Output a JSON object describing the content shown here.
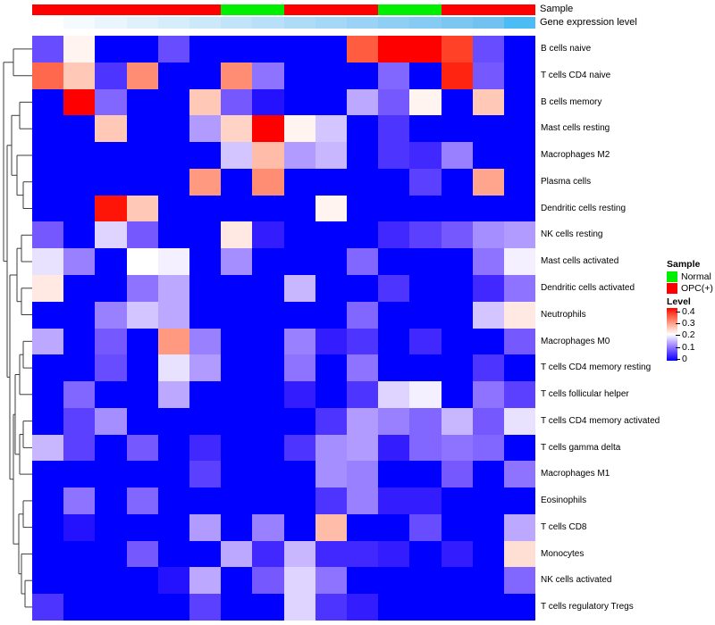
{
  "header": {
    "sample_annotation_label": "Sample",
    "gene_annotation_label": "Gene expression level"
  },
  "legend": {
    "sample_title": "Sample",
    "sample_items": [
      {
        "label": "Normal",
        "color": "#00ee00"
      },
      {
        "label": "OPC(+)",
        "color": "#ff0000"
      }
    ],
    "level_title": "Level",
    "level_ticks": [
      "0.4",
      "0.3",
      "0.2",
      "0.1",
      "0"
    ]
  },
  "colors": {
    "normal_green": "#00ee00",
    "opc_red": "#ff0000",
    "heat_low": "#0000ff",
    "heat_mid": "#ffffff",
    "heat_high": "#ff0000",
    "dendrogram_stroke": "#3c3c3c"
  },
  "chart_data": {
    "type": "heatmap",
    "title": "",
    "value_name": "Level",
    "value_range": [
      0,
      0.4
    ],
    "colormap": {
      "low": "#0000ff",
      "mid": "#ffffff",
      "high": "#ff0000",
      "midpoint": 0.2
    },
    "n_columns": 16,
    "column_sample_groups": [
      "OPC(+)",
      "OPC(+)",
      "OPC(+)",
      "OPC(+)",
      "OPC(+)",
      "OPC(+)",
      "Normal",
      "Normal",
      "OPC(+)",
      "OPC(+)",
      "OPC(+)",
      "Normal",
      "Normal",
      "OPC(+)",
      "OPC(+)",
      "OPC(+)"
    ],
    "gene_expression_colors": [
      "#ffffff",
      "#f4fafe",
      "#eaf5fd",
      "#e0f1fc",
      "#d6edfb",
      "#cce9fa",
      "#c2e4f9",
      "#b8e0f8",
      "#aedcf7",
      "#a4d8f6",
      "#9ad3f5",
      "#90cff4",
      "#86cbf3",
      "#7cc6f2",
      "#72c2f1",
      "#4bbdf4"
    ],
    "rows": [
      "B cells naive",
      "T cells CD4 naive",
      "B cells memory",
      "Mast cells resting",
      "Macrophages M2",
      "Plasma cells",
      "Dendritic cells resting",
      "NK cells resting",
      "Mast cells activated",
      "Dendritic cells activated",
      "Neutrophils",
      "Macrophages M0",
      "T cells CD4 memory resting",
      "T cells follicular helper",
      "T cells CD4 memory activated",
      "T cells gamma delta",
      "Macrophages M1",
      "Eosinophils",
      "T cells CD8",
      "Monocytes",
      "NK cells activated",
      "T cells regulatory  Tregs"
    ],
    "values": [
      [
        0.07,
        0.21,
        0,
        0,
        0.07,
        0,
        0,
        0,
        0,
        0,
        0.34,
        0.4,
        0.4,
        0.36,
        0.07,
        0
      ],
      [
        0.33,
        0.25,
        0.05,
        0.3,
        0,
        0,
        0.3,
        0.1,
        0,
        0,
        0,
        0.09,
        0,
        0.38,
        0.08,
        0
      ],
      [
        0,
        0.4,
        0.09,
        0,
        0,
        0.25,
        0.08,
        0.02,
        0,
        0,
        0.14,
        0.08,
        0.21,
        0,
        0.25,
        0
      ],
      [
        0,
        0,
        0.25,
        0,
        0,
        0.13,
        0.24,
        0.4,
        0.21,
        0.16,
        0,
        0.05,
        0,
        0,
        0,
        0
      ],
      [
        0,
        0,
        0,
        0,
        0,
        0,
        0.16,
        0.26,
        0.13,
        0.15,
        0,
        0.05,
        0.04,
        0.11,
        0,
        0
      ],
      [
        0,
        0,
        0,
        0,
        0,
        0.29,
        0,
        0.3,
        0,
        0,
        0,
        0,
        0.06,
        0,
        0.28,
        0
      ],
      [
        0,
        0,
        0.39,
        0.25,
        0,
        0,
        0,
        0,
        0,
        0.21,
        0,
        0,
        0,
        0,
        0,
        0
      ],
      [
        0.08,
        0,
        0.17,
        0.08,
        0,
        0,
        0.22,
        0.03,
        0,
        0,
        0,
        0.04,
        0.06,
        0.08,
        0.12,
        0.13
      ],
      [
        0.18,
        0.11,
        0,
        0.2,
        0.19,
        0,
        0.12,
        0,
        0,
        0,
        0.09,
        0,
        0,
        0,
        0.1,
        0.19
      ],
      [
        0.22,
        0,
        0,
        0.1,
        0.14,
        0,
        0,
        0,
        0.15,
        0,
        0,
        0.05,
        0,
        0,
        0.04,
        0.1
      ],
      [
        0,
        0,
        0.11,
        0.16,
        0.14,
        0,
        0,
        0,
        0,
        0,
        0.09,
        0,
        0,
        0,
        0.16,
        0.22
      ],
      [
        0.14,
        0,
        0.08,
        0,
        0.29,
        0.11,
        0,
        0,
        0.11,
        0.03,
        0.05,
        0,
        0.04,
        0,
        0,
        0.08
      ],
      [
        0,
        0,
        0.07,
        0,
        0.18,
        0.13,
        0,
        0,
        0.1,
        0,
        0.1,
        0,
        0,
        0,
        0.05,
        0
      ],
      [
        0,
        0.09,
        0,
        0,
        0.14,
        0,
        0,
        0,
        0.03,
        0,
        0.05,
        0.17,
        0.19,
        0,
        0.1,
        0.06
      ],
      [
        0,
        0.06,
        0.12,
        0,
        0,
        0,
        0,
        0,
        0,
        0.05,
        0.13,
        0.11,
        0.09,
        0.15,
        0.08,
        0.18
      ],
      [
        0.15,
        0.06,
        0,
        0.08,
        0,
        0.04,
        0,
        0,
        0.05,
        0.12,
        0.13,
        0.03,
        0.09,
        0.1,
        0.09,
        0
      ],
      [
        0,
        0,
        0,
        0,
        0,
        0.06,
        0,
        0,
        0,
        0.12,
        0.11,
        0,
        0,
        0.08,
        0,
        0.1
      ],
      [
        0,
        0.1,
        0,
        0.09,
        0,
        0,
        0,
        0,
        0,
        0.05,
        0.11,
        0.03,
        0.03,
        0,
        0,
        0
      ],
      [
        0,
        0.02,
        0,
        0,
        0,
        0.13,
        0,
        0.11,
        0,
        0.26,
        0,
        0,
        0.07,
        0,
        0,
        0.14
      ],
      [
        0,
        0,
        0,
        0.08,
        0,
        0,
        0.14,
        0.04,
        0.15,
        0.04,
        0.04,
        0.03,
        0,
        0.03,
        0,
        0.23
      ],
      [
        0,
        0,
        0,
        0,
        0.02,
        0.14,
        0,
        0.08,
        0.17,
        0.1,
        0,
        0,
        0,
        0,
        0,
        0.09
      ],
      [
        0.05,
        0,
        0,
        0,
        0,
        0.06,
        0,
        0,
        0.17,
        0.05,
        0.03,
        0,
        0,
        0,
        0,
        0
      ]
    ],
    "row_dendrogram_segments": [
      [
        15,
        54.9,
        15,
        84.7
      ],
      [
        15,
        54.9,
        36,
        54.9
      ],
      [
        15,
        84.7,
        36,
        84.7
      ],
      [
        22,
        114.4,
        22,
        144.2
      ],
      [
        22,
        114.4,
        36,
        114.4
      ],
      [
        22,
        144.2,
        36,
        144.2
      ],
      [
        26,
        203.7,
        26,
        233.5
      ],
      [
        26,
        203.7,
        36,
        203.7
      ],
      [
        26,
        233.5,
        36,
        233.5
      ],
      [
        19,
        174,
        19,
        218.6
      ],
      [
        19,
        174,
        36,
        174
      ],
      [
        19,
        218.6,
        26,
        218.6
      ],
      [
        13,
        129.3,
        13,
        196.3
      ],
      [
        13,
        129.3,
        22,
        129.3
      ],
      [
        13,
        196.3,
        19,
        196.3
      ],
      [
        24,
        263.3,
        24,
        293
      ],
      [
        24,
        263.3,
        36,
        263.3
      ],
      [
        24,
        293,
        36,
        293
      ],
      [
        24,
        322.8,
        24,
        352.5
      ],
      [
        24,
        322.8,
        36,
        322.8
      ],
      [
        24,
        352.5,
        36,
        352.5
      ],
      [
        19,
        278.2,
        19,
        337.7
      ],
      [
        19,
        278.2,
        24,
        278.2
      ],
      [
        19,
        337.7,
        24,
        337.7
      ],
      [
        26,
        382.3,
        26,
        412.1
      ],
      [
        26,
        382.3,
        36,
        382.3
      ],
      [
        26,
        412.1,
        36,
        412.1
      ],
      [
        22,
        397.2,
        22,
        441.8
      ],
      [
        22,
        397.2,
        26,
        397.2
      ],
      [
        22,
        441.8,
        36,
        441.8
      ],
      [
        26,
        471.6,
        26,
        501.4
      ],
      [
        26,
        471.6,
        36,
        471.6
      ],
      [
        26,
        501.4,
        36,
        501.4
      ],
      [
        22,
        486.5,
        22,
        531.1
      ],
      [
        22,
        486.5,
        26,
        486.5
      ],
      [
        22,
        531.1,
        36,
        531.1
      ],
      [
        17,
        419.5,
        17,
        508.8
      ],
      [
        17,
        419.5,
        22,
        419.5
      ],
      [
        17,
        508.8,
        22,
        508.8
      ],
      [
        26,
        560.9,
        26,
        590.6
      ],
      [
        26,
        560.9,
        36,
        560.9
      ],
      [
        26,
        590.6,
        36,
        590.6
      ],
      [
        28,
        650.2,
        28,
        679.9
      ],
      [
        28,
        650.2,
        36,
        650.2
      ],
      [
        28,
        679.9,
        36,
        679.9
      ],
      [
        24,
        620.4,
        24,
        665
      ],
      [
        24,
        620.4,
        36,
        620.4
      ],
      [
        24,
        665,
        28,
        665
      ],
      [
        21,
        575.8,
        21,
        642.7
      ],
      [
        21,
        575.8,
        26,
        575.8
      ],
      [
        21,
        642.7,
        24,
        642.7
      ],
      [
        15,
        464.2,
        15,
        609.2
      ],
      [
        15,
        464.2,
        17,
        464.2
      ],
      [
        15,
        609.2,
        21,
        609.2
      ],
      [
        11,
        308,
        11,
        536.7
      ],
      [
        11,
        308,
        19,
        308
      ],
      [
        11,
        536.7,
        15,
        536.7
      ],
      [
        8,
        162.8,
        8,
        422.4
      ],
      [
        8,
        162.8,
        13,
        162.8
      ],
      [
        8,
        422.4,
        11,
        422.4
      ],
      [
        4,
        69.8,
        4,
        292.6
      ],
      [
        4,
        69.8,
        15,
        69.8
      ],
      [
        4,
        292.6,
        8,
        292.6
      ]
    ]
  }
}
